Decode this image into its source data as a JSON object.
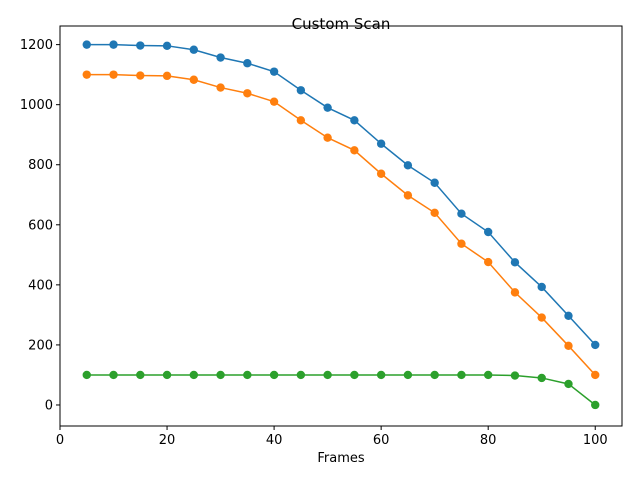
{
  "chart_data": {
    "type": "line",
    "title": "Custom Scan",
    "xlabel": "Frames",
    "ylabel": "",
    "xlim": [
      0,
      105
    ],
    "ylim": [
      -70,
      1262
    ],
    "xticks": [
      0,
      20,
      40,
      60,
      80,
      100
    ],
    "yticks": [
      0,
      200,
      400,
      600,
      800,
      1000,
      1200
    ],
    "grid": false,
    "x": [
      5,
      10,
      15,
      20,
      25,
      30,
      35,
      40,
      45,
      50,
      55,
      60,
      65,
      70,
      75,
      80,
      85,
      90,
      95,
      100
    ],
    "series": [
      {
        "color": "#1f77b4",
        "values": [
          1200,
          1200,
          1197,
          1196,
          1183,
          1157,
          1138,
          1110,
          1048,
          990,
          948,
          870,
          798,
          740,
          637,
          576,
          475,
          393,
          297,
          200
        ]
      },
      {
        "color": "#ff7f0e",
        "values": [
          1100,
          1100,
          1097,
          1096,
          1083,
          1057,
          1038,
          1010,
          948,
          890,
          848,
          770,
          698,
          640,
          537,
          476,
          375,
          291,
          197,
          100
        ]
      },
      {
        "color": "#2ca02c",
        "values": [
          100,
          100,
          100,
          100,
          100,
          100,
          100,
          100,
          100,
          100,
          100,
          100,
          100,
          100,
          100,
          100,
          98,
          90,
          70,
          0
        ]
      }
    ]
  }
}
